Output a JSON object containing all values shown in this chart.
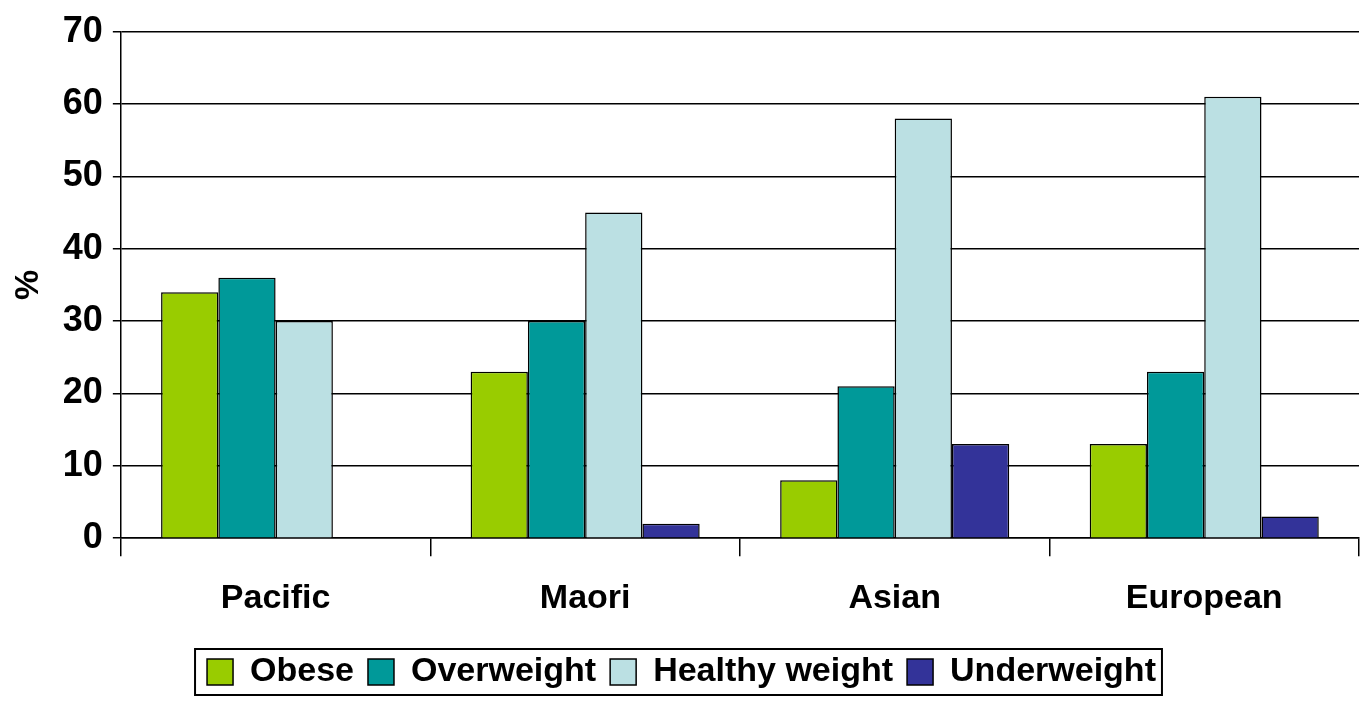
{
  "chart_data": {
    "type": "bar",
    "ylabel": "%",
    "categories": [
      "Pacific",
      "Maori",
      "Asian",
      "European"
    ],
    "series": [
      {
        "name": "Obese",
        "color": "#99cc00",
        "values": [
          34,
          23,
          8,
          13
        ]
      },
      {
        "name": "Overweight",
        "color": "#009999",
        "values": [
          36,
          30,
          21,
          23
        ]
      },
      {
        "name": "Healthy weight",
        "color": "#bbe0e3",
        "values": [
          30,
          45,
          58,
          61
        ]
      },
      {
        "name": "Underweight",
        "color": "#333399",
        "values": [
          null,
          2,
          13,
          3
        ]
      }
    ],
    "ylim": [
      0,
      70
    ],
    "yticks": [
      0,
      10,
      20,
      30,
      40,
      50,
      60,
      70
    ],
    "grid": "y",
    "legend": "bottom"
  }
}
